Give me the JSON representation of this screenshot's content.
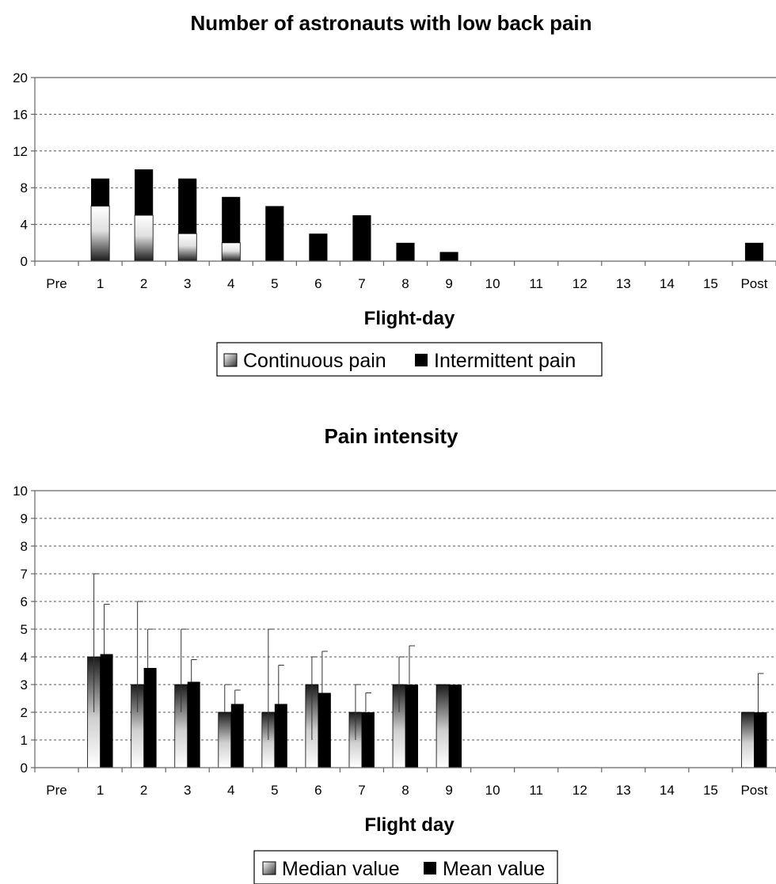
{
  "chart_data": [
    {
      "type": "bar",
      "stacked": true,
      "title": "Number of astronauts with low back pain",
      "xlabel": "Flight-day",
      "ylabel": "",
      "categories": [
        "Pre",
        "1",
        "2",
        "3",
        "4",
        "5",
        "6",
        "7",
        "8",
        "9",
        "10",
        "11",
        "12",
        "13",
        "14",
        "15",
        "Post"
      ],
      "ylim": [
        0,
        20
      ],
      "yticks": [
        0,
        4,
        8,
        12,
        16,
        20
      ],
      "grid": true,
      "legend_position": "bottom",
      "series": [
        {
          "name": "Continuous pain",
          "fill": "gradient-white-black",
          "values": [
            0,
            6,
            5,
            3,
            2,
            0,
            0,
            0,
            0,
            0,
            0,
            0,
            0,
            0,
            0,
            0,
            0
          ]
        },
        {
          "name": "Intermittent pain",
          "fill": "#000000",
          "values": [
            0,
            3,
            5,
            6,
            5,
            6,
            3,
            5,
            2,
            1,
            0,
            0,
            0,
            0,
            0,
            0,
            2
          ]
        }
      ]
    },
    {
      "type": "bar",
      "stacked": false,
      "title": "Pain intensity",
      "xlabel": "Flight day",
      "ylabel": "",
      "categories": [
        "Pre",
        "1",
        "2",
        "3",
        "4",
        "5",
        "6",
        "7",
        "8",
        "9",
        "10",
        "11",
        "12",
        "13",
        "14",
        "15",
        "Post"
      ],
      "ylim": [
        0,
        10
      ],
      "yticks": [
        0,
        1,
        2,
        3,
        4,
        5,
        6,
        7,
        8,
        9,
        10
      ],
      "grid": true,
      "legend_position": "bottom",
      "series": [
        {
          "name": "Median value",
          "fill": "gradient-white-black",
          "values": [
            null,
            4,
            3,
            3,
            2,
            2,
            3,
            2,
            3,
            3,
            null,
            null,
            null,
            null,
            null,
            null,
            2
          ],
          "err_low": [
            null,
            2,
            2,
            2,
            null,
            1,
            1,
            1,
            2,
            null,
            null,
            null,
            null,
            null,
            null,
            null,
            null
          ],
          "err_high": [
            null,
            7,
            6,
            5,
            3,
            5,
            4,
            3,
            4,
            null,
            null,
            null,
            null,
            null,
            null,
            null,
            null
          ]
        },
        {
          "name": "Mean value",
          "fill": "#000000",
          "values": [
            null,
            4.1,
            3.6,
            3.1,
            2.3,
            2.3,
            2.7,
            2.0,
            3.0,
            3.0,
            null,
            null,
            null,
            null,
            null,
            null,
            2.0
          ],
          "err_high": [
            null,
            5.9,
            5.0,
            3.9,
            2.8,
            3.7,
            4.2,
            2.7,
            4.4,
            null,
            null,
            null,
            null,
            null,
            null,
            null,
            3.4
          ]
        }
      ]
    }
  ]
}
